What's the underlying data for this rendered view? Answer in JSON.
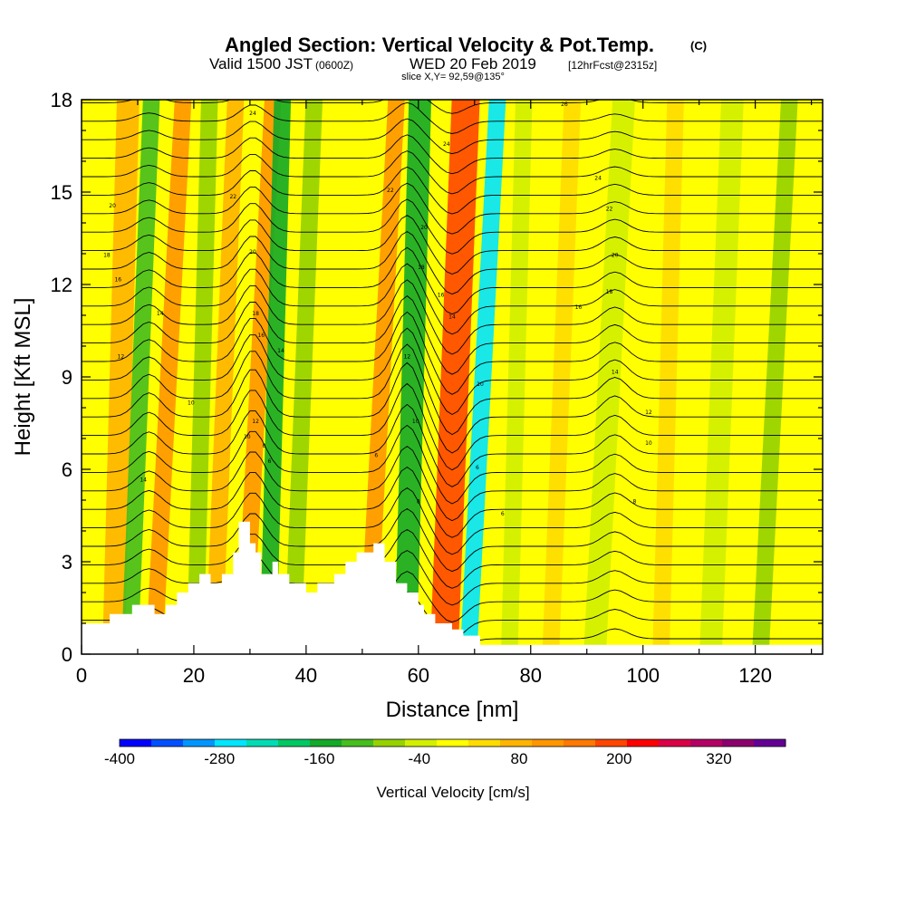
{
  "header": {
    "title": "Angled Section: Vertical Velocity & Pot.Temp.",
    "title_unit": "(C)",
    "valid_prefix": "Valid 1500 JST",
    "valid_zulu": "(0600Z)",
    "valid_date": "WED 20 Feb 2019",
    "forecast": "[12hrFcst@2315z]",
    "slice": "slice X,Y= 92,59@135°"
  },
  "chart_data": {
    "type": "heatmap",
    "title": "Angled Section: Vertical Velocity & Pot.Temp. (C)",
    "xlabel": "Distance [nm]",
    "ylabel": "Height [Kft MSL]",
    "xlim": [
      0,
      132
    ],
    "ylim": [
      0,
      18
    ],
    "x_ticks": [
      0,
      20,
      40,
      60,
      80,
      100,
      120
    ],
    "y_ticks": [
      0,
      3,
      6,
      9,
      12,
      15,
      18
    ],
    "colorbar": {
      "label": "Vertical Velocity [cm/s]",
      "min": -400,
      "max": 400,
      "step": 40,
      "tick_values": [
        -400,
        -280,
        -160,
        -40,
        80,
        200,
        320
      ],
      "colors": [
        "#0000ff",
        "#0050ff",
        "#0096ff",
        "#00e6ff",
        "#00dcb4",
        "#00c864",
        "#14aa28",
        "#46be1e",
        "#96d200",
        "#d2f000",
        "#ffff00",
        "#ffdc00",
        "#ffb400",
        "#ff9600",
        "#ff7800",
        "#ff4600",
        "#ff0000",
        "#dc0046",
        "#b40064",
        "#8c006e",
        "#640096"
      ]
    },
    "vertical_velocity_bands": [
      {
        "x": 5,
        "w": 4,
        "value": 100
      },
      {
        "x": 9,
        "w": 3,
        "value": -120
      },
      {
        "x": 14,
        "w": 3,
        "value": 140
      },
      {
        "x": 20,
        "w": 3,
        "value": -60
      },
      {
        "x": 24,
        "w": 3,
        "value": 80
      },
      {
        "x": 30,
        "w": 3,
        "value": 140
      },
      {
        "x": 33,
        "w": 3,
        "value": -140
      },
      {
        "x": 38,
        "w": 3,
        "value": -60
      },
      {
        "x": 52,
        "w": 3,
        "value": 120
      },
      {
        "x": 57,
        "w": 4,
        "value": -160
      },
      {
        "x": 64,
        "w": 5,
        "value": 220
      },
      {
        "x": 70,
        "w": 3,
        "value": -260
      },
      {
        "x": 76,
        "w": 3,
        "value": -40
      },
      {
        "x": 84,
        "w": 3,
        "value": 60
      },
      {
        "x": 92,
        "w": 4,
        "value": -40
      },
      {
        "x": 103,
        "w": 3,
        "value": 60
      },
      {
        "x": 112,
        "w": 4,
        "value": -40
      },
      {
        "x": 122,
        "w": 3,
        "value": -60
      }
    ],
    "terrain": {
      "x": [
        0,
        5,
        5,
        9,
        9,
        13,
        13,
        15,
        15,
        17,
        17,
        19,
        19,
        21,
        21,
        23,
        23,
        25,
        25,
        27,
        27,
        28,
        28,
        30,
        30,
        31,
        31,
        32,
        32,
        34,
        34,
        35,
        35,
        37,
        37,
        40,
        40,
        42,
        42,
        45,
        45,
        47,
        47,
        49,
        49,
        52,
        52,
        54,
        54,
        56,
        56,
        58,
        58,
        60,
        60,
        61,
        61,
        63,
        63,
        66,
        66,
        68,
        68,
        71,
        71,
        73,
        73,
        132
      ],
      "y": [
        1.0,
        1.0,
        1.3,
        1.3,
        1.6,
        1.6,
        1.3,
        1.3,
        1.6,
        1.6,
        2.0,
        2.0,
        2.3,
        2.3,
        2.6,
        2.6,
        2.3,
        2.3,
        2.6,
        2.6,
        3.3,
        3.3,
        4.3,
        4.3,
        3.6,
        3.6,
        3.3,
        3.3,
        2.6,
        2.6,
        3.0,
        3.0,
        2.6,
        2.6,
        2.3,
        2.3,
        2.0,
        2.0,
        2.3,
        2.3,
        2.6,
        2.6,
        3.0,
        3.0,
        3.3,
        3.3,
        3.6,
        3.6,
        3.0,
        3.0,
        2.3,
        2.3,
        2.0,
        2.0,
        1.6,
        1.6,
        1.3,
        1.3,
        1.0,
        1.0,
        0.8,
        0.8,
        0.6,
        0.6,
        0.3,
        0.3,
        0.3,
        0.3
      ]
    },
    "isentrope_labels": [
      {
        "x": 5.5,
        "y": 14.5,
        "text": "20"
      },
      {
        "x": 4.5,
        "y": 12.9,
        "text": "18"
      },
      {
        "x": 6.5,
        "y": 12.1,
        "text": "16"
      },
      {
        "x": 14,
        "y": 11.0,
        "text": "14"
      },
      {
        "x": 7,
        "y": 9.6,
        "text": "12"
      },
      {
        "x": 19.5,
        "y": 8.1,
        "text": "10"
      },
      {
        "x": 11,
        "y": 5.6,
        "text": "14"
      },
      {
        "x": 30.5,
        "y": 17.5,
        "text": "24"
      },
      {
        "x": 27,
        "y": 14.8,
        "text": "22"
      },
      {
        "x": 30.5,
        "y": 13.0,
        "text": "20"
      },
      {
        "x": 31,
        "y": 11.0,
        "text": "18"
      },
      {
        "x": 32,
        "y": 10.3,
        "text": "16"
      },
      {
        "x": 35.5,
        "y": 9.8,
        "text": "14"
      },
      {
        "x": 31,
        "y": 7.5,
        "text": "12"
      },
      {
        "x": 29.5,
        "y": 7.0,
        "text": "10"
      },
      {
        "x": 32.5,
        "y": 6.7,
        "text": "8"
      },
      {
        "x": 33.5,
        "y": 6.2,
        "text": "6"
      },
      {
        "x": 55,
        "y": 15.0,
        "text": "22"
      },
      {
        "x": 65,
        "y": 16.5,
        "text": "24"
      },
      {
        "x": 61,
        "y": 13.8,
        "text": "20"
      },
      {
        "x": 60.5,
        "y": 12.5,
        "text": "18"
      },
      {
        "x": 64,
        "y": 11.6,
        "text": "16"
      },
      {
        "x": 66,
        "y": 10.9,
        "text": "14"
      },
      {
        "x": 58,
        "y": 9.6,
        "text": "12"
      },
      {
        "x": 59.5,
        "y": 7.5,
        "text": "10"
      },
      {
        "x": 52.5,
        "y": 6.4,
        "text": "6"
      },
      {
        "x": 60,
        "y": 4.9,
        "text": "8"
      },
      {
        "x": 71,
        "y": 8.7,
        "text": "10"
      },
      {
        "x": 70.5,
        "y": 6.0,
        "text": "6"
      },
      {
        "x": 75,
        "y": 4.5,
        "text": "6"
      },
      {
        "x": 86,
        "y": 17.8,
        "text": "26"
      },
      {
        "x": 92,
        "y": 15.4,
        "text": "24"
      },
      {
        "x": 94,
        "y": 14.4,
        "text": "22"
      },
      {
        "x": 95,
        "y": 12.9,
        "text": "20"
      },
      {
        "x": 94,
        "y": 11.7,
        "text": "18"
      },
      {
        "x": 88.5,
        "y": 11.2,
        "text": "16"
      },
      {
        "x": 95,
        "y": 9.1,
        "text": "14"
      },
      {
        "x": 101,
        "y": 7.8,
        "text": "12"
      },
      {
        "x": 101,
        "y": 6.8,
        "text": "10"
      },
      {
        "x": 98.5,
        "y": 4.9,
        "text": "8"
      }
    ]
  }
}
